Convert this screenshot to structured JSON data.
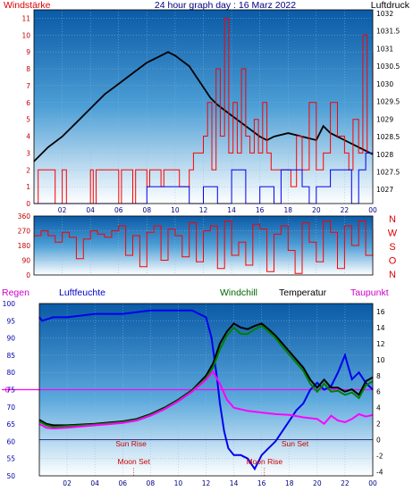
{
  "header": {
    "left_label": "Windstärke",
    "title": "24 hour graph day : 16 Marz 2022",
    "right_label": "Luftdruck"
  },
  "colors": {
    "wind": "#ff0000",
    "pressure": "#000000",
    "humidity": "#0000ee",
    "windchill": "#008000",
    "temperature": "#000000",
    "dewpoint": "#ff00ff",
    "axis_left": "#c00000",
    "axis_humidity": "#0000aa",
    "zero_line": "#ff00ff"
  },
  "legend": {
    "regen": "Regen",
    "luftfeuchte": "Luftfeuchte",
    "windchill": "Windchill",
    "temperatur": "Temperatur",
    "taupunkt": "Taupunkt"
  },
  "compass": [
    "N",
    "W",
    "S",
    "O",
    "N"
  ],
  "chart_data": [
    {
      "type": "line",
      "panel": "wind-pressure",
      "x_ticks": [
        "02",
        "04",
        "06",
        "08",
        "10",
        "12",
        "14",
        "16",
        "18",
        "20",
        "22",
        "00"
      ],
      "y_left_ticks": [
        "0",
        "1",
        "2",
        "3",
        "4",
        "5",
        "6",
        "7",
        "8",
        "9",
        "10",
        "11"
      ],
      "y_right_ticks": [
        "1027",
        "1027.5",
        "1028",
        "1028.5",
        "1029",
        "1029.5",
        "1030",
        "1030.5",
        "1031",
        "1031.5",
        "1032"
      ],
      "ylim_left": [
        0,
        11.5
      ],
      "ylim_right": [
        1026.6,
        1032.1
      ],
      "xlim": [
        0,
        24
      ],
      "series": [
        {
          "color": "black",
          "style": "line",
          "x": [
            0,
            1,
            2,
            3,
            4,
            5,
            6,
            7,
            8,
            9,
            9.5,
            10,
            11,
            12,
            12.5,
            13,
            14,
            15,
            16,
            16.5,
            17,
            18,
            19,
            20,
            20.5,
            21,
            22,
            23,
            24
          ],
          "values": [
            1027.8,
            1028.2,
            1028.5,
            1028.9,
            1029.3,
            1029.7,
            1030.0,
            1030.3,
            1030.6,
            1030.8,
            1030.9,
            1030.8,
            1030.5,
            1029.9,
            1029.6,
            1029.4,
            1029.1,
            1028.8,
            1028.5,
            1028.4,
            1028.5,
            1028.6,
            1028.5,
            1028.4,
            1028.8,
            1028.6,
            1028.4,
            1028.2,
            1028.0
          ]
        },
        {
          "color": "red",
          "style": "step",
          "x": [
            0,
            0.3,
            1.5,
            2,
            2.3,
            4,
            4.2,
            4.4,
            6,
            6.2,
            7,
            7.2,
            8,
            8.2,
            9,
            9.2,
            10,
            10.3,
            11,
            11.3,
            12,
            12.3,
            12.6,
            12.9,
            13.2,
            13.5,
            13.8,
            14.1,
            14.4,
            14.7,
            15,
            15.3,
            15.6,
            15.9,
            16.2,
            16.5,
            16.8,
            17,
            18,
            18.2,
            18.6,
            19,
            19.5,
            20,
            20.5,
            21,
            21.5,
            22,
            22.3,
            22.6,
            23,
            23.3,
            23.6,
            24
          ],
          "values": [
            0,
            2,
            0,
            2,
            0,
            2,
            0,
            2,
            0,
            2,
            0,
            2,
            1,
            2,
            1,
            2,
            2,
            1,
            2,
            3,
            4,
            6,
            2,
            8,
            4,
            11,
            3,
            6,
            3,
            8,
            4,
            3,
            5,
            3,
            6,
            3,
            2,
            2,
            2,
            1,
            4,
            2,
            6,
            2,
            3,
            6,
            4,
            3,
            2,
            5,
            3,
            10,
            3,
            9
          ]
        },
        {
          "color": "blue",
          "style": "step",
          "x": [
            0,
            6,
            8,
            11,
            12,
            13,
            14,
            15,
            16,
            17,
            17.5,
            19,
            19.5,
            20,
            21,
            22,
            22.5,
            23,
            23.5,
            24
          ],
          "values": [
            0,
            0,
            1,
            0,
            1,
            0,
            2,
            0,
            1,
            0,
            2,
            1,
            0,
            1,
            2,
            2,
            0,
            2,
            3,
            3
          ]
        }
      ]
    },
    {
      "type": "line",
      "panel": "wind-direction",
      "y_ticks": [
        "0",
        "90",
        "180",
        "270",
        "360"
      ],
      "ylim": [
        0,
        360
      ],
      "series": [
        {
          "color": "red",
          "x": [
            0,
            0.5,
            1,
            1.5,
            2,
            2.5,
            3,
            3.5,
            4,
            4.5,
            5,
            5.5,
            6,
            6.5,
            7,
            7.5,
            8,
            8.5,
            9,
            9.5,
            10,
            10.5,
            11,
            11.5,
            12,
            12.5,
            13,
            13.5,
            14,
            14.5,
            15,
            15.5,
            16,
            16.5,
            17,
            17.5,
            18,
            18.5,
            19,
            19.5,
            20,
            20.5,
            21,
            21.5,
            22,
            22.5,
            23,
            23.5,
            24
          ],
          "values": [
            240,
            270,
            240,
            200,
            260,
            230,
            100,
            220,
            270,
            250,
            230,
            270,
            300,
            120,
            240,
            50,
            260,
            300,
            90,
            280,
            240,
            110,
            320,
            80,
            270,
            300,
            40,
            330,
            120,
            200,
            60,
            310,
            280,
            20,
            250,
            300,
            150,
            10,
            320,
            200,
            80,
            330,
            260,
            40,
            300,
            180,
            330,
            120,
            280
          ]
        }
      ]
    },
    {
      "type": "line",
      "panel": "temperature-humidity",
      "y_left_ticks": [
        "50",
        "55",
        "60",
        "65",
        "70",
        "75",
        "80",
        "85",
        "90",
        "95",
        "100"
      ],
      "y_right_ticks": [
        "-4",
        "-2",
        "0",
        "2",
        "4",
        "6",
        "8",
        "10",
        "12",
        "14",
        "16"
      ],
      "ylim_left": [
        50,
        100
      ],
      "ylim_right": [
        -4.5,
        17
      ],
      "annotations": [
        {
          "text": "Sun Rise",
          "x": 6.6
        },
        {
          "text": "Sun Set",
          "x": 18.4
        },
        {
          "text": "Moon Set",
          "x": 6.8
        },
        {
          "text": "Moon Rise",
          "x": 16.2
        }
      ],
      "series": [
        {
          "color": "blue",
          "axis": "left",
          "x": [
            0,
            0.2,
            1,
            2,
            4,
            6,
            8,
            9,
            10,
            11,
            11.5,
            12,
            12.4,
            12.8,
            13,
            13.3,
            13.6,
            14,
            14.5,
            15,
            15.5,
            16,
            16.5,
            17,
            17.5,
            18,
            18.5,
            19,
            19.5,
            20,
            20.5,
            21,
            21.5,
            22,
            22.5,
            23,
            23.5,
            24
          ],
          "values": [
            96,
            95,
            96,
            96,
            97,
            97,
            98,
            98,
            98,
            98,
            97,
            96,
            90,
            78,
            71,
            63,
            58,
            56,
            56,
            55,
            52,
            56,
            58,
            60,
            63,
            66,
            69,
            71,
            75,
            77,
            75,
            76,
            80,
            85,
            78,
            80,
            77,
            75
          ]
        },
        {
          "color": "black",
          "axis": "right",
          "x": [
            0,
            0.5,
            1,
            2,
            4,
            6,
            7,
            8,
            9,
            10,
            11,
            12,
            12.5,
            13,
            13.5,
            14,
            14.5,
            15,
            15.5,
            16,
            16.5,
            17,
            17.5,
            18,
            18.5,
            19,
            19.5,
            20,
            20.5,
            21,
            21.5,
            22,
            22.5,
            23,
            23.5,
            24
          ],
          "values": [
            2.5,
            2.0,
            1.8,
            1.8,
            2.0,
            2.3,
            2.6,
            3.2,
            4.0,
            5.0,
            6.2,
            8.0,
            9.5,
            12.0,
            13.5,
            14.5,
            14.0,
            13.8,
            14.2,
            14.5,
            13.8,
            13.0,
            12.0,
            11.0,
            10.0,
            9.0,
            7.5,
            6.5,
            7.5,
            6.5,
            6.5,
            6.0,
            6.3,
            5.6,
            7.3,
            7.8
          ]
        },
        {
          "color": "green",
          "axis": "right",
          "x": [
            0,
            0.5,
            1,
            2,
            4,
            6,
            7,
            8,
            9,
            10,
            11,
            12,
            12.5,
            13,
            13.5,
            14,
            14.5,
            15,
            15.5,
            16,
            16.5,
            17,
            17.5,
            18,
            18.5,
            19,
            19.5,
            20,
            20.5,
            21,
            21.5,
            22,
            22.5,
            23,
            23.5,
            24
          ],
          "values": [
            2.3,
            1.8,
            1.6,
            1.7,
            1.9,
            2.2,
            2.5,
            3.1,
            3.9,
            4.9,
            6.1,
            7.7,
            9.0,
            11.3,
            13.0,
            14.0,
            13.2,
            13.2,
            13.8,
            14.2,
            13.5,
            12.7,
            11.6,
            10.6,
            9.6,
            8.6,
            7.0,
            6.0,
            7.0,
            6.0,
            6.1,
            5.6,
            5.9,
            5.2,
            6.8,
            7.3
          ]
        },
        {
          "color": "magenta",
          "axis": "right",
          "x": [
            0,
            0.5,
            1,
            2,
            4,
            6,
            7,
            8,
            9,
            10,
            11,
            12,
            12.5,
            13,
            13.5,
            14,
            15,
            16,
            17,
            18,
            19,
            20,
            20.5,
            21,
            21.5,
            22,
            22.5,
            23,
            23.5,
            24
          ],
          "values": [
            2.0,
            1.5,
            1.4,
            1.5,
            1.8,
            2.1,
            2.4,
            3.0,
            3.8,
            4.8,
            6.0,
            7.5,
            8.5,
            7.0,
            5.0,
            4.0,
            3.6,
            3.4,
            3.2,
            3.1,
            2.8,
            2.6,
            2.0,
            3.0,
            2.4,
            2.2,
            2.6,
            3.2,
            2.9,
            3.1
          ]
        }
      ]
    }
  ]
}
